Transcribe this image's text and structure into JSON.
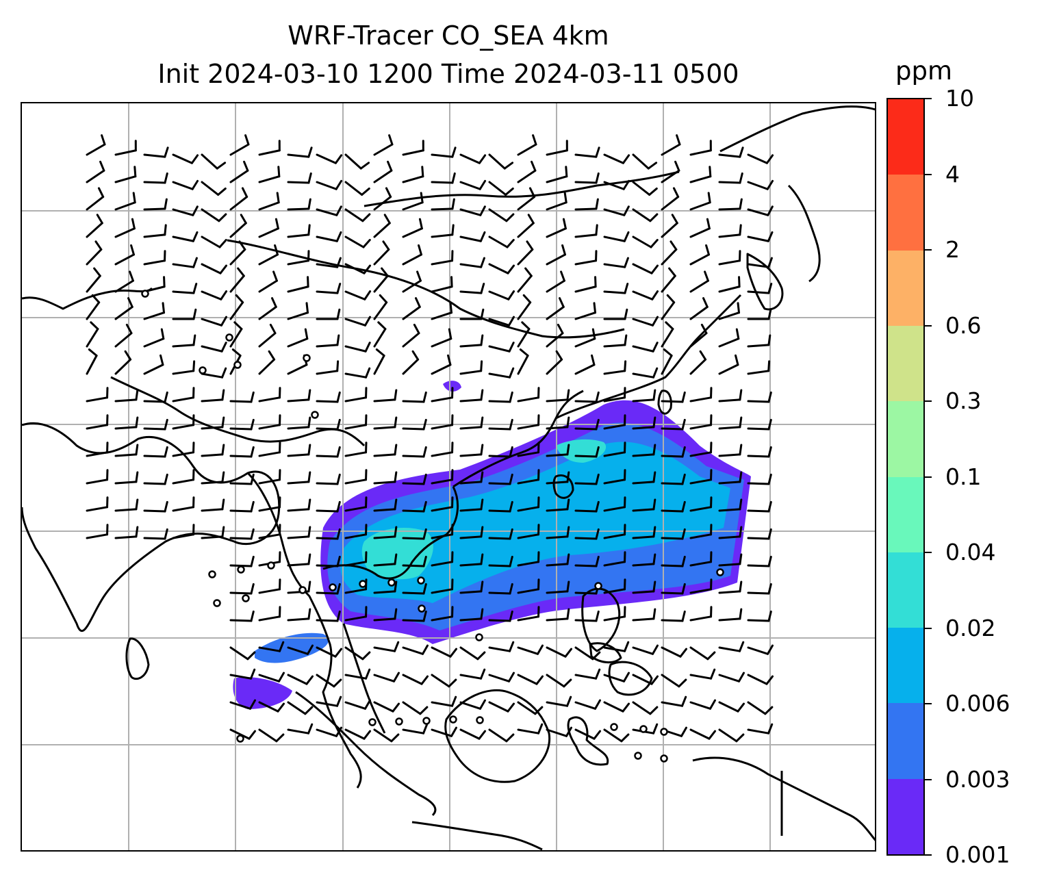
{
  "title": {
    "line1": "WRF-Tracer CO_SEA 4km",
    "line2": "Init 2024-03-10 1200 Time 2024-03-11 0500"
  },
  "colorbar": {
    "unit": "ppm",
    "levels": [
      "0.001",
      "0.003",
      "0.006",
      "0.02",
      "0.04",
      "0.1",
      "0.3",
      "0.6",
      "2",
      "4",
      "10"
    ],
    "colors": [
      "#6a2af7",
      "#3375f2",
      "#06b0ec",
      "#33ded6",
      "#69f8bb",
      "#9cf7a3",
      "#cfe38a",
      "#fdb166",
      "#ff7040",
      "#fc2b19"
    ]
  },
  "map": {
    "field": "CO tracer concentration with wind barbs",
    "gridlines": true,
    "coastline_color": "#000000",
    "gridline_color": "#b0b0b0"
  }
}
